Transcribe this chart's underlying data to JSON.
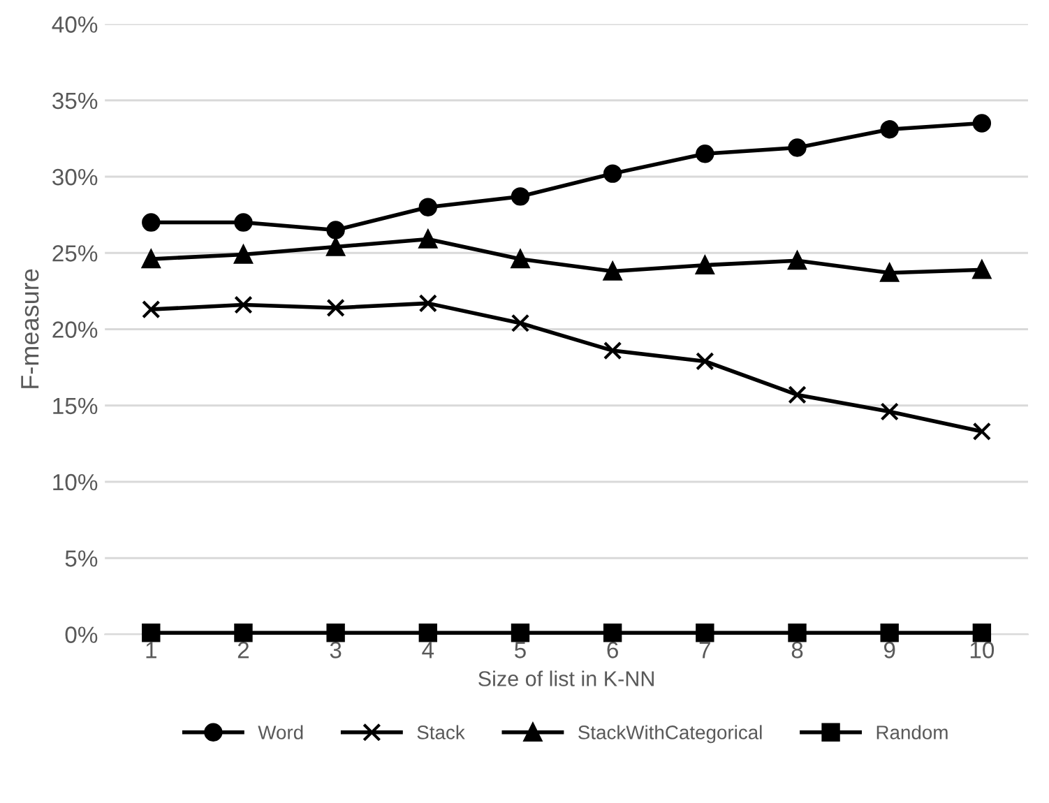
{
  "chart_data": {
    "type": "line",
    "xlabel": "Size of list in K-NN",
    "ylabel": "F-measure",
    "categories": [
      "1",
      "2",
      "3",
      "4",
      "5",
      "6",
      "7",
      "8",
      "9",
      "10"
    ],
    "series": [
      {
        "name": "Word",
        "color": "#000000",
        "marker": "circle",
        "values": [
          27.0,
          27.0,
          26.5,
          28.0,
          28.7,
          30.2,
          31.5,
          31.9,
          33.1,
          33.5
        ]
      },
      {
        "name": "Stack",
        "color": "#000000",
        "marker": "cross",
        "values": [
          21.3,
          21.6,
          21.4,
          21.7,
          20.4,
          18.6,
          17.9,
          15.7,
          14.6,
          13.3
        ]
      },
      {
        "name": "StackWithCategorical",
        "color": "#000000",
        "marker": "triangle",
        "values": [
          24.6,
          24.9,
          25.4,
          25.9,
          24.6,
          23.8,
          24.2,
          24.5,
          23.7,
          23.9
        ]
      },
      {
        "name": "Random",
        "color": "#000000",
        "marker": "square",
        "values": [
          0.1,
          0.1,
          0.1,
          0.1,
          0.1,
          0.1,
          0.1,
          0.1,
          0.1,
          0.1
        ]
      }
    ],
    "ylim": [
      0,
      40
    ],
    "yticks": [
      {
        "value": 0,
        "label": "0%"
      },
      {
        "value": 5,
        "label": "5%"
      },
      {
        "value": 10,
        "label": "10%"
      },
      {
        "value": 15,
        "label": "15%"
      },
      {
        "value": 20,
        "label": "20%"
      },
      {
        "value": 25,
        "label": "25%"
      },
      {
        "value": 30,
        "label": "30%"
      },
      {
        "value": 35,
        "label": "35%"
      },
      {
        "value": 40,
        "label": "40%"
      }
    ],
    "grid": "y",
    "legend": "bottom",
    "line_style": "solid"
  }
}
